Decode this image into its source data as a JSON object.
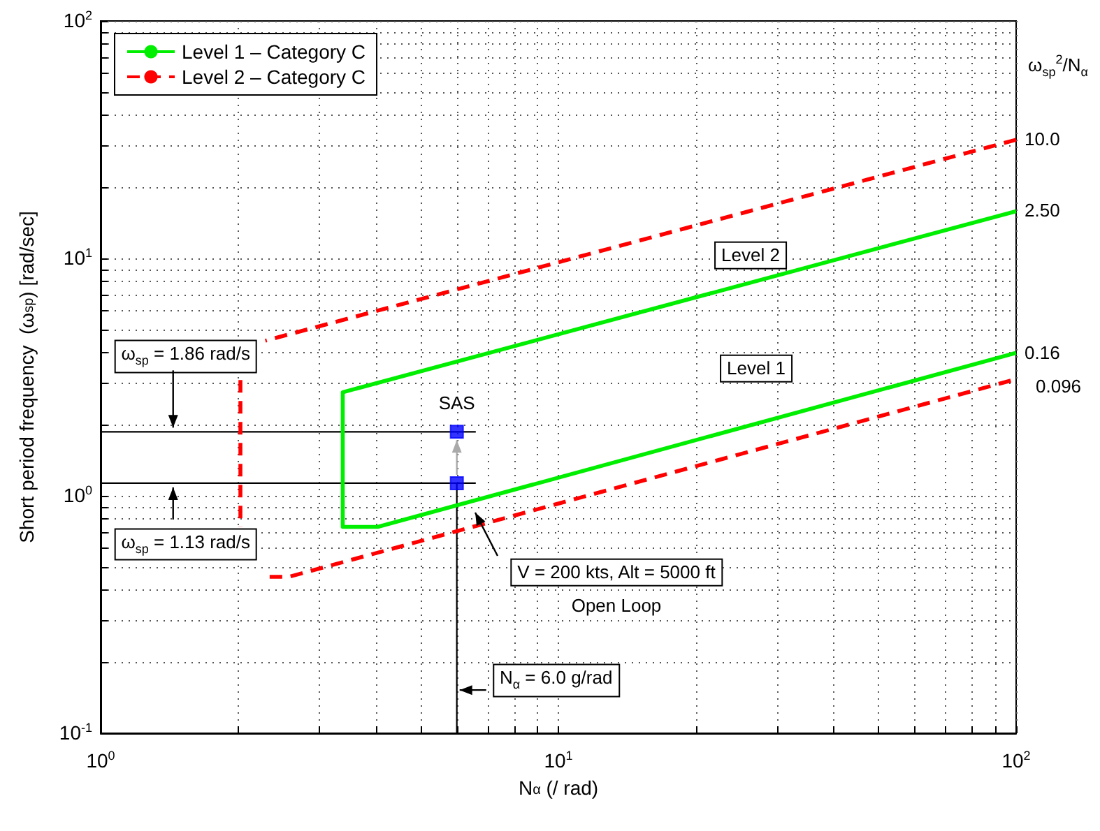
{
  "chart_data": {
    "type": "line",
    "xlabel": "N$_{α}$ (/ rad)",
    "ylabel": "Short period frequency  (ω$_{sp}$) [rad/sec]",
    "log": "xy",
    "grid": true,
    "legend": "top left",
    "marker": "none",
    "xlim": [
      1,
      100
    ],
    "ylim": [
      0.1,
      100
    ],
    "xticks": [
      {
        "value": 1,
        "label": "10$^{0}$"
      },
      {
        "value": 2,
        "label": null
      },
      {
        "value": 3,
        "label": null
      },
      {
        "value": 4,
        "label": null
      },
      {
        "value": 5,
        "label": null
      },
      {
        "value": 6,
        "label": null
      },
      {
        "value": 7,
        "label": null
      },
      {
        "value": 8,
        "label": null
      },
      {
        "value": 9,
        "label": null
      },
      {
        "value": 10,
        "label": "10$^{1}$"
      },
      {
        "value": 20,
        "label": null
      },
      {
        "value": 30,
        "label": null
      },
      {
        "value": 40,
        "label": null
      },
      {
        "value": 50,
        "label": null
      },
      {
        "value": 60,
        "label": null
      },
      {
        "value": 70,
        "label": null
      },
      {
        "value": 80,
        "label": null
      },
      {
        "value": 90,
        "label": null
      },
      {
        "value": 100,
        "label": "10$^{2}$"
      }
    ],
    "yticks": [
      {
        "value": 0.1,
        "label": "10$^{-1}$"
      },
      {
        "value": 0.2,
        "label": null
      },
      {
        "value": 0.3,
        "label": null
      },
      {
        "value": 0.4,
        "label": null
      },
      {
        "value": 0.5,
        "label": null
      },
      {
        "value": 0.6,
        "label": null
      },
      {
        "value": 0.7,
        "label": null
      },
      {
        "value": 0.8,
        "label": null
      },
      {
        "value": 0.9,
        "label": null
      },
      {
        "value": 1,
        "label": "10$^{0}$"
      },
      {
        "value": 2,
        "label": null
      },
      {
        "value": 3,
        "label": null
      },
      {
        "value": 4,
        "label": null
      },
      {
        "value": 5,
        "label": null
      },
      {
        "value": 6,
        "label": null
      },
      {
        "value": 7,
        "label": null
      },
      {
        "value": 8,
        "label": null
      },
      {
        "value": 9,
        "label": null
      },
      {
        "value": 10,
        "label": "10$^{1}$"
      },
      {
        "value": 20,
        "label": null
      },
      {
        "value": 30,
        "label": null
      },
      {
        "value": 40,
        "label": null
      },
      {
        "value": 50,
        "label": null
      },
      {
        "value": 60,
        "label": null
      },
      {
        "value": 70,
        "label": null
      },
      {
        "value": 80,
        "label": null
      },
      {
        "value": 90,
        "label": null
      },
      {
        "value": 100,
        "label": "10$^{2}$"
      }
    ],
    "series": [
      {
        "name": "Level 1 – Category C",
        "color": "#00ee00",
        "line_style": "solid",
        "x": [
          100,
          3.38,
          3.38,
          4.03,
          100
        ],
        "values": [
          15.8,
          2.73,
          0.74,
          0.74,
          4.0
        ]
      },
      {
        "name": "Level 2 – Category C",
        "color": "#ff0000",
        "line_style": "dashed",
        "x": [
          100,
          2.29,
          2.1,
          2.02,
          2.02,
          2.1,
          2.34,
          2.58,
          100
        ],
        "values": [
          31.6,
          4.5,
          null,
          3.07,
          0.74,
          null,
          0.456,
          0.456,
          3.1
        ]
      },
      {
        "color": "#000000",
        "line_style": "solid",
        "x": [
          1,
          6.6
        ],
        "values": [
          1.86,
          1.86
        ]
      },
      {
        "color": "#000000",
        "line_style": "solid",
        "x": [
          1,
          6.6
        ],
        "values": [
          1.13,
          1.13
        ]
      },
      {
        "color": "#000000",
        "line_style": "solid",
        "x": [
          6,
          6
        ],
        "values": [
          0.1,
          1.13
        ]
      },
      {
        "type": "scatter",
        "color": "#0000ff",
        "marker": "square",
        "x": [
          6,
          6
        ],
        "values": [
          1.86,
          1.13
        ]
      }
    ],
    "annotations": [
      {
        "text": "ω$_{sp}$ = 1.86 rad/s",
        "x": 1.44,
        "y": 1.86
      },
      {
        "text": "ω$_{sp}$ = 1.13 rad/s",
        "x": 1.44,
        "y": 1.13
      },
      {
        "text": "SAS",
        "x": 6,
        "y": 1.86
      },
      "V = 200 kts, Alt = 5000 ft",
      "Open Loop",
      {
        "text": "N$_{α}$ = 6.0 g/rad",
        "x": 6,
        "y": 0.152
      },
      "Level 1",
      "Level 2",
      "ω$_{sp}$$^{2}$/N$_{α}$",
      {
        "text": "10.0",
        "x": 100,
        "y": 31.6
      },
      {
        "text": "2.50",
        "x": 100,
        "y": 15.8
      },
      {
        "text": "0.16",
        "x": 100,
        "y": 4.0
      },
      {
        "text": "0.096",
        "x": 100,
        "y": 3.1
      }
    ]
  }
}
